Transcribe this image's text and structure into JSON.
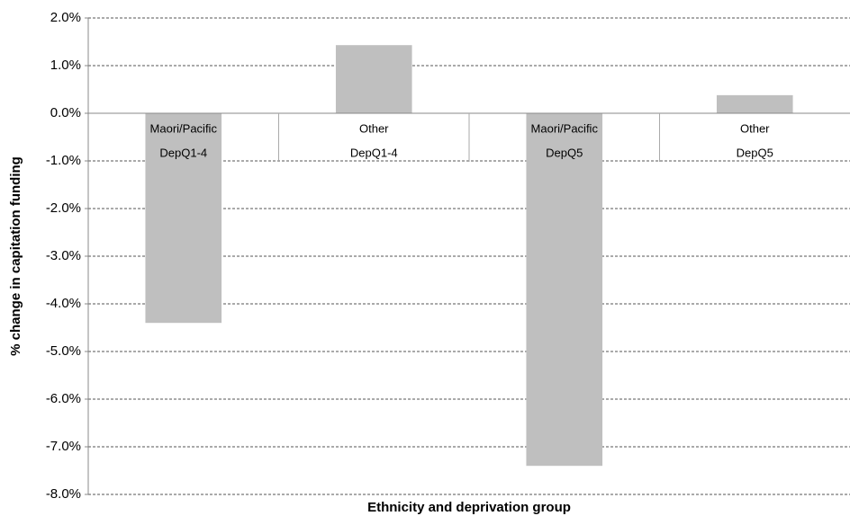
{
  "chart_data": {
    "type": "bar",
    "x_label": "Ethnicity and deprivation group",
    "y_label": "% change in capitation funding",
    "categories": [
      [
        "Maori/Pacific",
        "DepQ1-4"
      ],
      [
        "Other",
        "DepQ1-4"
      ],
      [
        "Maori/Pacific",
        "DepQ5"
      ],
      [
        "Other",
        "DepQ5"
      ]
    ],
    "values": [
      -4.4,
      1.43,
      -7.4,
      0.38
    ],
    "color": "#bfbfbf",
    "ylim": [
      -8,
      2
    ],
    "yticks": [
      {
        "value": 2,
        "label": "2.0%"
      },
      {
        "value": 1,
        "label": "1.0%"
      },
      {
        "value": 0,
        "label": "0.0%"
      },
      {
        "value": -1,
        "label": "-1.0%"
      },
      {
        "value": -2,
        "label": "-2.0%"
      },
      {
        "value": -3,
        "label": "-3.0%"
      },
      {
        "value": -4,
        "label": "-4.0%"
      },
      {
        "value": -5,
        "label": "-5.0%"
      },
      {
        "value": -6,
        "label": "-6.0%"
      },
      {
        "value": -7,
        "label": "-7.0%"
      },
      {
        "value": -8,
        "label": "-8.0%"
      }
    ],
    "grid": true
  }
}
